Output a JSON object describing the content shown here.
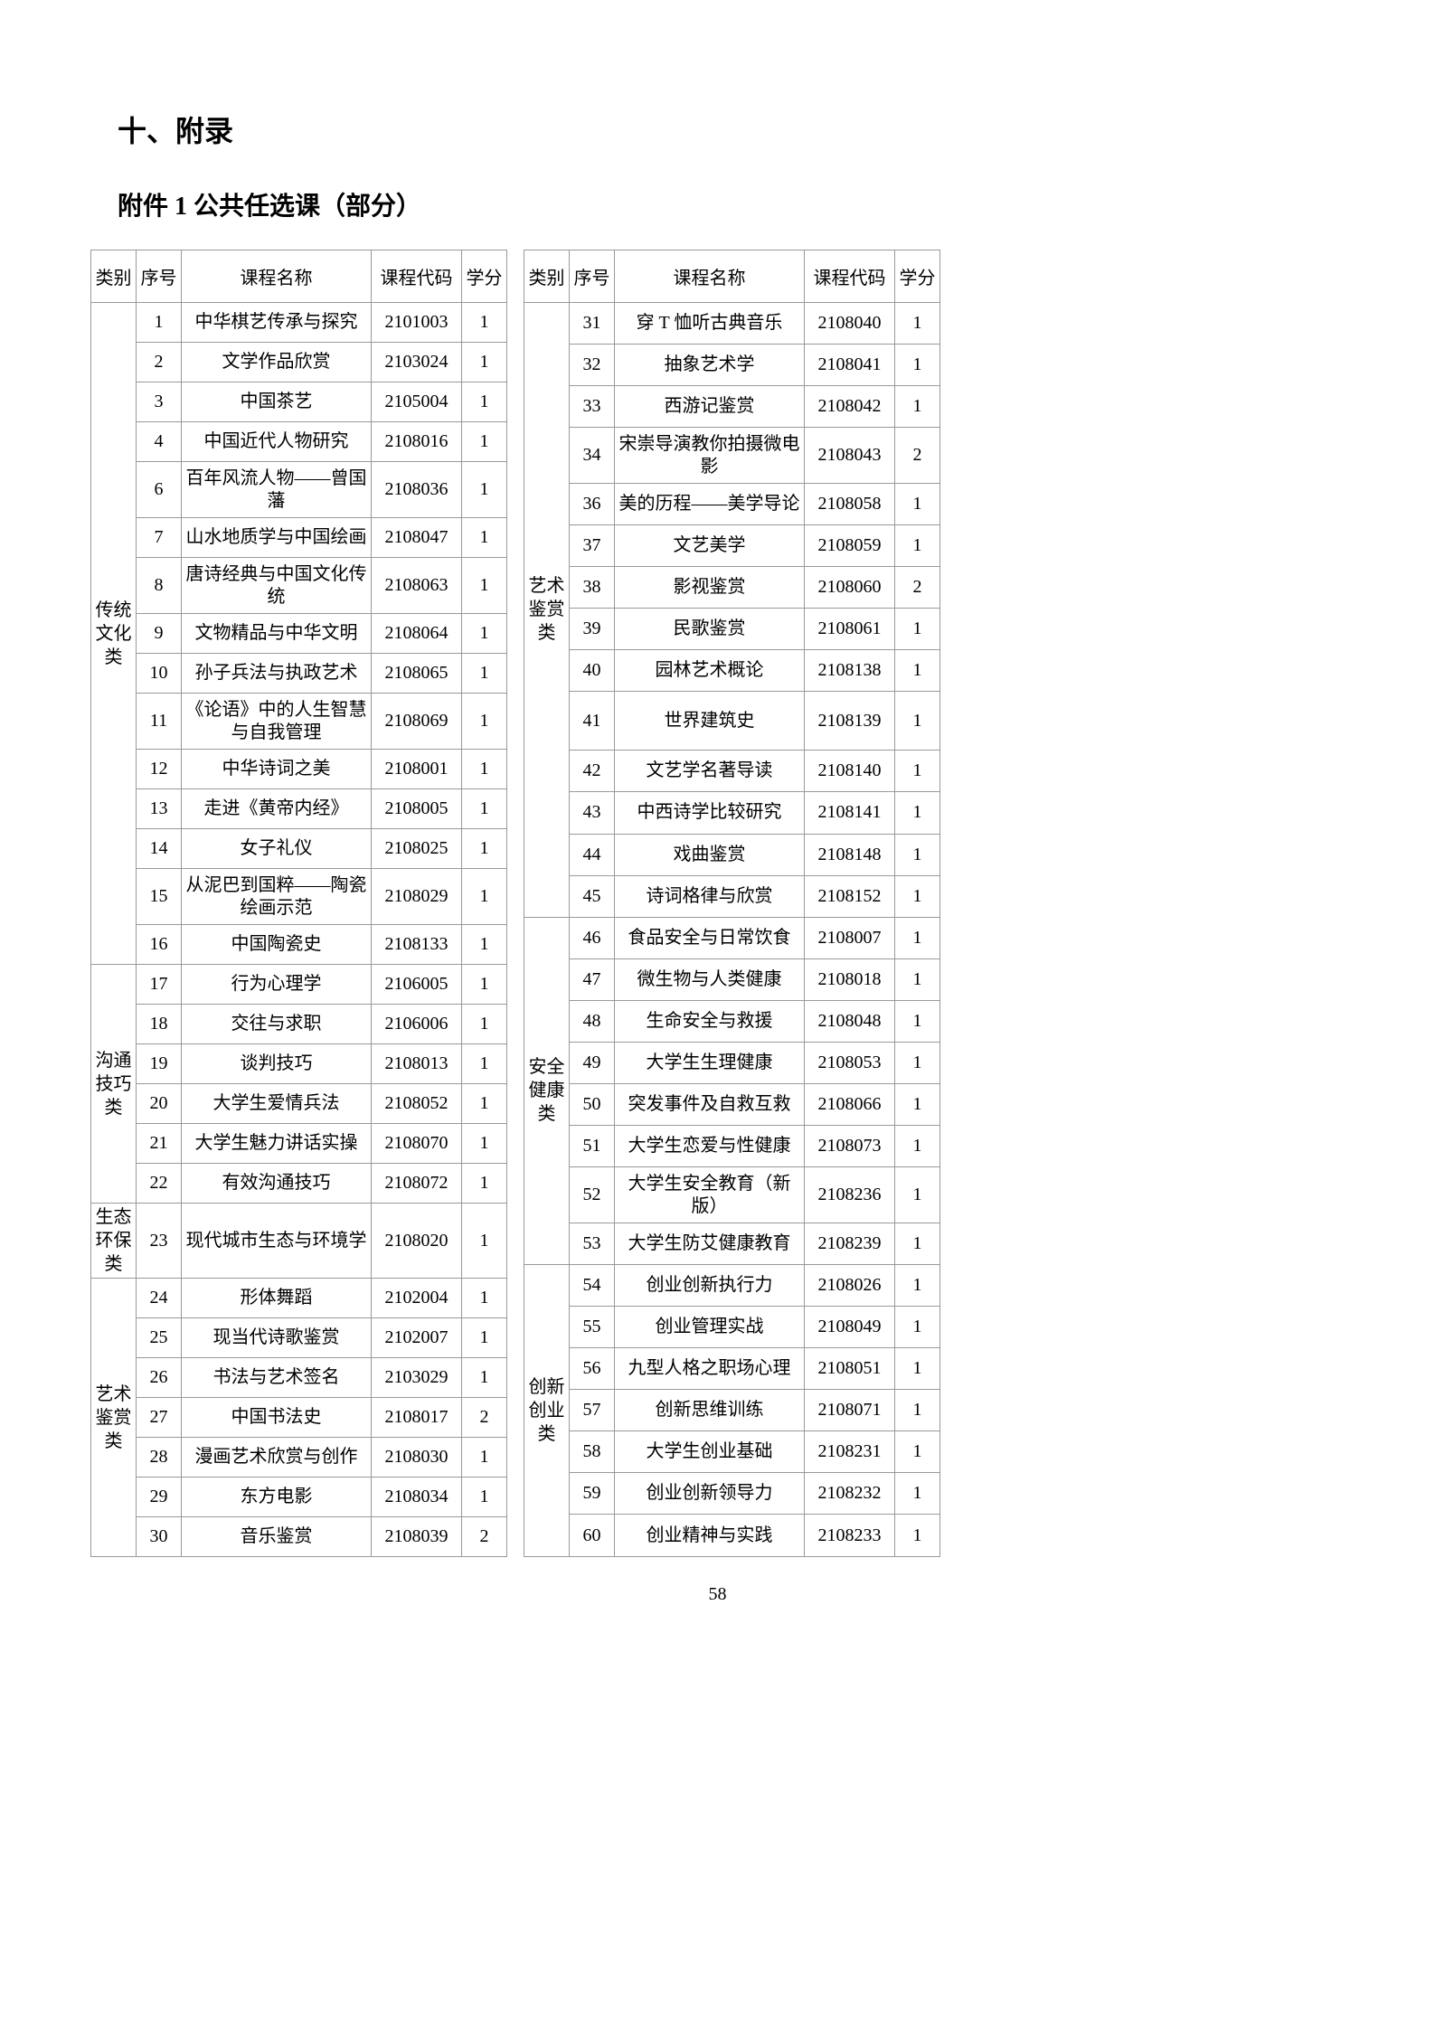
{
  "heading_main": "十、附录",
  "heading_sub": "附件 1 公共任选课（部分）",
  "page_number": "58",
  "headers": {
    "category": "类别",
    "index": "序号",
    "name": "课程名称",
    "code": "课程代码",
    "credit": "学分"
  },
  "left_sections": [
    {
      "category": "传统文化类",
      "rows": [
        {
          "idx": "1",
          "name": "中华棋艺传承与探究",
          "code": "2101003",
          "credit": "1"
        },
        {
          "idx": "2",
          "name": "文学作品欣赏",
          "code": "2103024",
          "credit": "1"
        },
        {
          "idx": "3",
          "name": "中国茶艺",
          "code": "2105004",
          "credit": "1"
        },
        {
          "idx": "4",
          "name": "中国近代人物研究",
          "code": "2108016",
          "credit": "1"
        },
        {
          "idx": "6",
          "name": "百年风流人物——曾国藩",
          "code": "2108036",
          "credit": "1",
          "multiline": true
        },
        {
          "idx": "7",
          "name": "山水地质学与中国绘画",
          "code": "2108047",
          "credit": "1"
        },
        {
          "idx": "8",
          "name": "唐诗经典与中国文化传统",
          "code": "2108063",
          "credit": "1",
          "multiline": true
        },
        {
          "idx": "9",
          "name": "文物精品与中华文明",
          "code": "2108064",
          "credit": "1"
        },
        {
          "idx": "10",
          "name": "孙子兵法与执政艺术",
          "code": "2108065",
          "credit": "1"
        },
        {
          "idx": "11",
          "name": "《论语》中的人生智慧与自我管理",
          "code": "2108069",
          "credit": "1",
          "multiline": true
        },
        {
          "idx": "12",
          "name": "中华诗词之美",
          "code": "2108001",
          "credit": "1"
        },
        {
          "idx": "13",
          "name": "走进《黄帝内经》",
          "code": "2108005",
          "credit": "1"
        },
        {
          "idx": "14",
          "name": "女子礼仪",
          "code": "2108025",
          "credit": "1"
        },
        {
          "idx": "15",
          "name": "从泥巴到国粹——陶瓷绘画示范",
          "code": "2108029",
          "credit": "1",
          "multiline": true
        },
        {
          "idx": "16",
          "name": "中国陶瓷史",
          "code": "2108133",
          "credit": "1"
        }
      ]
    },
    {
      "category": "沟通技巧类",
      "rows": [
        {
          "idx": "17",
          "name": "行为心理学",
          "code": "2106005",
          "credit": "1"
        },
        {
          "idx": "18",
          "name": "交往与求职",
          "code": "2106006",
          "credit": "1"
        },
        {
          "idx": "19",
          "name": "谈判技巧",
          "code": "2108013",
          "credit": "1"
        },
        {
          "idx": "20",
          "name": "大学生爱情兵法",
          "code": "2108052",
          "credit": "1"
        },
        {
          "idx": "21",
          "name": "大学生魅力讲话实操",
          "code": "2108070",
          "credit": "1"
        },
        {
          "idx": "22",
          "name": "有效沟通技巧",
          "code": "2108072",
          "credit": "1"
        }
      ]
    },
    {
      "category": "生态环保类",
      "rows": [
        {
          "idx": "23",
          "name": "现代城市生态与环境学",
          "code": "2108020",
          "credit": "1"
        }
      ]
    },
    {
      "category": "艺术鉴赏类",
      "rows": [
        {
          "idx": "24",
          "name": "形体舞蹈",
          "code": "2102004",
          "credit": "1"
        },
        {
          "idx": "25",
          "name": "现当代诗歌鉴赏",
          "code": "2102007",
          "credit": "1"
        },
        {
          "idx": "26",
          "name": "书法与艺术签名",
          "code": "2103029",
          "credit": "1"
        },
        {
          "idx": "27",
          "name": "中国书法史",
          "code": "2108017",
          "credit": "2"
        },
        {
          "idx": "28",
          "name": "漫画艺术欣赏与创作",
          "code": "2108030",
          "credit": "1"
        },
        {
          "idx": "29",
          "name": "东方电影",
          "code": "2108034",
          "credit": "1"
        },
        {
          "idx": "30",
          "name": "音乐鉴赏",
          "code": "2108039",
          "credit": "2"
        }
      ]
    }
  ],
  "right_sections": [
    {
      "category": "艺术鉴赏类",
      "rows": [
        {
          "idx": "31",
          "name": "穿 T 恤听古典音乐",
          "code": "2108040",
          "credit": "1"
        },
        {
          "idx": "32",
          "name": "抽象艺术学",
          "code": "2108041",
          "credit": "1"
        },
        {
          "idx": "33",
          "name": "西游记鉴赏",
          "code": "2108042",
          "credit": "1"
        },
        {
          "idx": "34",
          "name": "宋崇导演教你拍摄微电影",
          "code": "2108043",
          "credit": "2"
        },
        {
          "idx": "36",
          "name": "美的历程——美学导论",
          "code": "2108058",
          "credit": "1"
        },
        {
          "idx": "37",
          "name": "文艺美学",
          "code": "2108059",
          "credit": "1"
        },
        {
          "idx": "38",
          "name": "影视鉴赏",
          "code": "2108060",
          "credit": "2"
        },
        {
          "idx": "39",
          "name": "民歌鉴赏",
          "code": "2108061",
          "credit": "1"
        },
        {
          "idx": "40",
          "name": "园林艺术概论",
          "code": "2108138",
          "credit": "1"
        },
        {
          "idx": "41",
          "name": "世界建筑史",
          "code": "2108139",
          "credit": "1",
          "multiline": true
        },
        {
          "idx": "42",
          "name": "文艺学名著导读",
          "code": "2108140",
          "credit": "1"
        },
        {
          "idx": "43",
          "name": "中西诗学比较研究",
          "code": "2108141",
          "credit": "1"
        },
        {
          "idx": "44",
          "name": "戏曲鉴赏",
          "code": "2108148",
          "credit": "1"
        },
        {
          "idx": "45",
          "name": "诗词格律与欣赏",
          "code": "2108152",
          "credit": "1"
        }
      ]
    },
    {
      "category": "安全健康类",
      "rows": [
        {
          "idx": "46",
          "name": "食品安全与日常饮食",
          "code": "2108007",
          "credit": "1"
        },
        {
          "idx": "47",
          "name": "微生物与人类健康",
          "code": "2108018",
          "credit": "1"
        },
        {
          "idx": "48",
          "name": "生命安全与救援",
          "code": "2108048",
          "credit": "1"
        },
        {
          "idx": "49",
          "name": "大学生生理健康",
          "code": "2108053",
          "credit": "1"
        },
        {
          "idx": "50",
          "name": "突发事件及自救互救",
          "code": "2108066",
          "credit": "1"
        },
        {
          "idx": "51",
          "name": "大学生恋爱与性健康",
          "code": "2108073",
          "credit": "1"
        },
        {
          "idx": "52",
          "name": "大学生安全教育（新版）",
          "code": "2108236",
          "credit": "1"
        },
        {
          "idx": "53",
          "name": "大学生防艾健康教育",
          "code": "2108239",
          "credit": "1"
        }
      ]
    },
    {
      "category": "创新创业类",
      "rows": [
        {
          "idx": "54",
          "name": "创业创新执行力",
          "code": "2108026",
          "credit": "1"
        },
        {
          "idx": "55",
          "name": "创业管理实战",
          "code": "2108049",
          "credit": "1"
        },
        {
          "idx": "56",
          "name": "九型人格之职场心理",
          "code": "2108051",
          "credit": "1"
        },
        {
          "idx": "57",
          "name": "创新思维训练",
          "code": "2108071",
          "credit": "1"
        },
        {
          "idx": "58",
          "name": "大学生创业基础",
          "code": "2108231",
          "credit": "1"
        },
        {
          "idx": "59",
          "name": "创业创新领导力",
          "code": "2108232",
          "credit": "1"
        },
        {
          "idx": "60",
          "name": "创业精神与实践",
          "code": "2108233",
          "credit": "1"
        }
      ]
    }
  ]
}
